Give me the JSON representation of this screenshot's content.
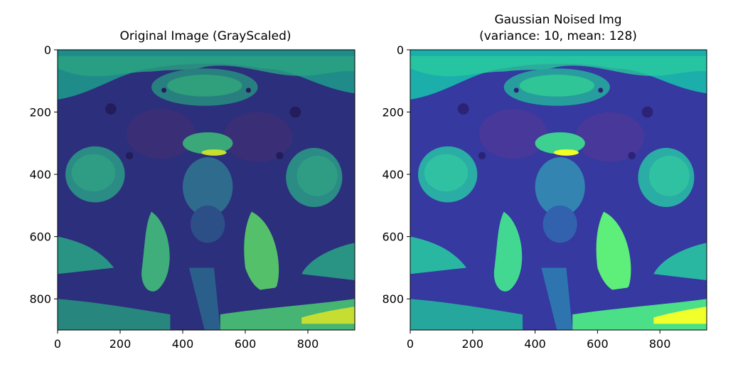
{
  "panels": [
    {
      "title_lines": [
        "Original Image (GrayScaled)"
      ],
      "x_ticks": [
        "0",
        "200",
        "400",
        "600",
        "800"
      ],
      "y_ticks": [
        "0",
        "200",
        "400",
        "600",
        "800"
      ],
      "colormap": "viridis",
      "brightness": 1.0
    },
    {
      "title_lines": [
        "Gaussian Noised Img",
        "(variance: 10, mean: 128)"
      ],
      "x_ticks": [
        "0",
        "200",
        "400",
        "600",
        "800"
      ],
      "y_ticks": [
        "0",
        "200",
        "400",
        "600",
        "800"
      ],
      "colormap": "viridis",
      "brightness": 1.22
    }
  ],
  "x_tick_values": [
    0,
    200,
    400,
    600,
    800
  ],
  "y_tick_values": [
    0,
    200,
    400,
    600,
    800
  ],
  "image_width": 950,
  "image_height": 900,
  "colors": {
    "viridis_low": "#440154",
    "viridis_darkblue": "#3b528b",
    "viridis_teal": "#21918c",
    "viridis_green": "#5ec962",
    "viridis_high": "#fde725"
  }
}
